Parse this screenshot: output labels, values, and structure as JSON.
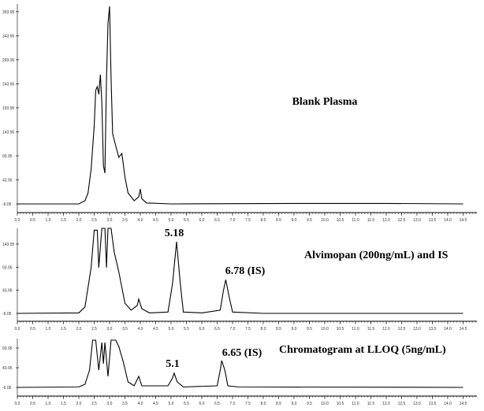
{
  "chart_data": [
    {
      "type": "line",
      "color": "#000000",
      "annotations": [
        {
          "text": "Blank Plasma"
        }
      ],
      "x": [
        0,
        2.0,
        2.2,
        2.3,
        2.4,
        2.5,
        2.55,
        2.6,
        2.65,
        2.7,
        2.75,
        2.8,
        2.85,
        2.9,
        2.95,
        3.0,
        3.05,
        3.1,
        3.2,
        3.3,
        3.4,
        3.5,
        3.6,
        3.8,
        3.95,
        4.0,
        4.05,
        4.2,
        5,
        9,
        12,
        14.5
      ],
      "values": [
        -6,
        -6,
        0.5,
        17,
        66,
        156,
        230,
        238,
        222,
        263,
        205,
        74,
        58,
        255,
        369,
        405,
        255,
        140,
        115,
        91,
        99,
        50,
        17,
        0.5,
        9,
        25,
        5,
        -4,
        -6,
        -5,
        -5,
        -6
      ],
      "xlim": [
        0,
        14.95
      ],
      "ylim": [
        -24,
        410
      ],
      "yticks": [
        -6.05,
        43.95,
        93.95,
        143.95,
        193.95,
        243.95,
        293.95,
        343.95,
        393.95
      ],
      "xticks": [
        {
          "value": 0,
          "label": "0.0"
        },
        {
          "value": 0.5,
          "label": "0.5"
        },
        {
          "value": 1,
          "label": "1.0"
        },
        {
          "value": 1.5,
          "label": "1.5"
        },
        {
          "value": 2,
          "label": "2.0"
        },
        {
          "value": 2.5,
          "label": "2.5"
        },
        {
          "value": 3,
          "label": "3.0"
        },
        {
          "value": 3.5,
          "label": "3.5"
        },
        {
          "value": 4,
          "label": "4.0"
        },
        {
          "value": 4.5,
          "label": "4.5"
        },
        {
          "value": 5,
          "label": "5.0"
        },
        {
          "value": 5.5,
          "label": "5.5"
        },
        {
          "value": 6,
          "label": "6.0"
        },
        {
          "value": 6.5,
          "label": "6.5"
        },
        {
          "value": 7,
          "label": "7.0"
        },
        {
          "value": 7.5,
          "label": "7.5"
        },
        {
          "value": 8,
          "label": "8.0"
        },
        {
          "value": 8.5,
          "label": "8.5"
        },
        {
          "value": 9,
          "label": "9.0"
        },
        {
          "value": 9.5,
          "label": "9.5"
        },
        {
          "value": 10,
          "label": "10.0"
        },
        {
          "value": 10.5,
          "label": "10.5"
        },
        {
          "value": 11,
          "label": "11.0"
        },
        {
          "value": 11.5,
          "label": "11.5"
        },
        {
          "value": 12,
          "label": "12.0"
        },
        {
          "value": 12.5,
          "label": "12.5"
        },
        {
          "value": 13,
          "label": "13.0"
        },
        {
          "value": 13.5,
          "label": "13.5"
        },
        {
          "value": 14,
          "label": "14.0"
        },
        {
          "value": 14.5,
          "label": "14.5"
        }
      ]
    },
    {
      "type": "line",
      "color": "#000000",
      "annotations": [
        {
          "text": "5.18"
        },
        {
          "text": "6.78 (IS)"
        },
        {
          "text": "Alvimopan (200ng/mL) and IS"
        }
      ],
      "x": [
        0,
        2.0,
        2.2,
        2.4,
        2.5,
        2.6,
        2.65,
        2.75,
        2.85,
        2.9,
        2.95,
        3.05,
        3.15,
        3.3,
        3.5,
        3.7,
        3.9,
        3.95,
        4.05,
        4.3,
        4.9,
        5.05,
        5.18,
        5.3,
        5.4,
        6.0,
        6.6,
        6.7,
        6.78,
        6.88,
        7.0,
        8,
        14.5
      ],
      "values": [
        -6,
        -5,
        8,
        93,
        174,
        174,
        93,
        178,
        178,
        93,
        178,
        178,
        127,
        84,
        16,
        1,
        11,
        25,
        4,
        -5,
        -3,
        59,
        149,
        59,
        -3,
        -5,
        1,
        42,
        67,
        33,
        -3,
        -6,
        -6
      ],
      "xlim": [
        0,
        14.95
      ],
      "ylim": [
        -23,
        178
      ],
      "yticks": [
        -6.05,
        43.95,
        93.95,
        143.95
      ],
      "xticks": [
        {
          "value": 0,
          "label": "0.0"
        },
        {
          "value": 0.5,
          "label": "0.5"
        },
        {
          "value": 1,
          "label": "1.0"
        },
        {
          "value": 1.5,
          "label": "1.5"
        },
        {
          "value": 2,
          "label": "2.0"
        },
        {
          "value": 2.5,
          "label": "2.5"
        },
        {
          "value": 3,
          "label": "3.0"
        },
        {
          "value": 3.5,
          "label": "3.5"
        },
        {
          "value": 4,
          "label": "4.0"
        },
        {
          "value": 4.5,
          "label": "4.5"
        },
        {
          "value": 5,
          "label": "5.0"
        },
        {
          "value": 5.5,
          "label": "5.5"
        },
        {
          "value": 6,
          "label": "6.0"
        },
        {
          "value": 6.5,
          "label": "6.5"
        },
        {
          "value": 7,
          "label": "7.0"
        },
        {
          "value": 7.5,
          "label": "7.5"
        },
        {
          "value": 8,
          "label": "8.0"
        },
        {
          "value": 8.5,
          "label": "8.5"
        },
        {
          "value": 9,
          "label": "9.0"
        },
        {
          "value": 9.5,
          "label": "9.5"
        },
        {
          "value": 10,
          "label": "10.0"
        },
        {
          "value": 10.5,
          "label": "10.5"
        },
        {
          "value": 11,
          "label": "11.0"
        },
        {
          "value": 11.5,
          "label": "11.5"
        },
        {
          "value": 12,
          "label": "12.0"
        },
        {
          "value": 12.5,
          "label": "12.5"
        },
        {
          "value": 13,
          "label": "13.0"
        },
        {
          "value": 13.5,
          "label": "13.5"
        },
        {
          "value": 14,
          "label": "14.0"
        },
        {
          "value": 14.5,
          "label": "14.5"
        }
      ]
    },
    {
      "type": "line",
      "color": "#000000",
      "annotations": [
        {
          "text": "Chromatogram at LLOQ (5ng/mL)"
        },
        {
          "text": "5.1"
        },
        {
          "text": "6.65 (IS)"
        }
      ],
      "x": [
        0,
        2.0,
        2.2,
        2.35,
        2.45,
        2.55,
        2.65,
        2.75,
        2.8,
        2.85,
        2.95,
        3.05,
        3.2,
        3.3,
        3.45,
        3.6,
        3.8,
        3.95,
        4.05,
        4.9,
        5.05,
        5.1,
        5.2,
        5.4,
        6.5,
        6.6,
        6.65,
        6.75,
        6.85,
        7.2,
        14.5
      ],
      "values": [
        -6,
        -5,
        2,
        38,
        114,
        114,
        38,
        108,
        54,
        108,
        22,
        114,
        114,
        98,
        58,
        8,
        -2,
        22,
        -2,
        -2,
        18,
        30,
        8,
        -5,
        -2,
        38,
        62,
        38,
        -2,
        -5,
        -6
      ],
      "xlim": [
        0,
        14.95
      ],
      "ylim": [
        -28,
        118
      ],
      "yticks": [
        -6.05,
        43.95,
        93.95
      ],
      "xticks": [
        {
          "value": 0,
          "label": "0.0"
        },
        {
          "value": 0.5,
          "label": "0.5"
        },
        {
          "value": 1,
          "label": "1.0"
        },
        {
          "value": 1.5,
          "label": "1.5"
        },
        {
          "value": 2,
          "label": "2.0"
        },
        {
          "value": 2.5,
          "label": "2.5"
        },
        {
          "value": 3,
          "label": "3.0"
        },
        {
          "value": 3.5,
          "label": "3.5"
        },
        {
          "value": 4,
          "label": "4.0"
        },
        {
          "value": 4.5,
          "label": "4.5"
        },
        {
          "value": 5,
          "label": "5.0"
        },
        {
          "value": 5.5,
          "label": "5.5"
        },
        {
          "value": 6,
          "label": "6.0"
        },
        {
          "value": 6.5,
          "label": "6.5"
        },
        {
          "value": 7,
          "label": "7.0"
        },
        {
          "value": 7.5,
          "label": "7.5"
        },
        {
          "value": 8,
          "label": "8.0"
        },
        {
          "value": 8.5,
          "label": "8.5"
        },
        {
          "value": 9,
          "label": "9.0"
        },
        {
          "value": 9.5,
          "label": "9.5"
        },
        {
          "value": 10,
          "label": "10.0"
        },
        {
          "value": 10.5,
          "label": "10.5"
        },
        {
          "value": 11,
          "label": "11.0"
        },
        {
          "value": 11.5,
          "label": "11.5"
        },
        {
          "value": 12,
          "label": "12.0"
        },
        {
          "value": 12.5,
          "label": "12.5"
        },
        {
          "value": 13,
          "label": "13.0"
        },
        {
          "value": 13.5,
          "label": "13.5"
        },
        {
          "value": 14,
          "label": "14.0"
        },
        {
          "value": 14.5,
          "label": "14.5"
        }
      ]
    }
  ]
}
